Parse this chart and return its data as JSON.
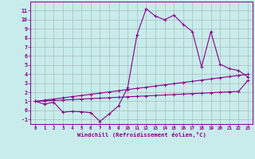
{
  "x": [
    0,
    1,
    2,
    3,
    4,
    5,
    6,
    7,
    8,
    9,
    10,
    11,
    12,
    13,
    14,
    15,
    16,
    17,
    18,
    19,
    20,
    21,
    22,
    23
  ],
  "y_curve": [
    1.0,
    0.7,
    0.9,
    -0.2,
    -0.1,
    -0.15,
    -0.25,
    -1.2,
    -0.4,
    0.5,
    2.5,
    8.3,
    11.2,
    10.4,
    10.0,
    10.5,
    9.5,
    8.7,
    4.8,
    8.7,
    5.1,
    4.6,
    4.4,
    3.7
  ],
  "y_line1": [
    1.0,
    1.13,
    1.26,
    1.39,
    1.52,
    1.65,
    1.78,
    1.91,
    2.04,
    2.17,
    2.3,
    2.43,
    2.56,
    2.69,
    2.82,
    2.95,
    3.08,
    3.21,
    3.34,
    3.47,
    3.6,
    3.73,
    3.86,
    3.99
  ],
  "y_line2": [
    1.0,
    1.05,
    1.1,
    1.15,
    1.2,
    1.25,
    1.3,
    1.35,
    1.4,
    1.45,
    1.5,
    1.55,
    1.6,
    1.65,
    1.7,
    1.75,
    1.8,
    1.85,
    1.9,
    1.95,
    2.0,
    2.05,
    2.1,
    3.3
  ],
  "line_color": "#880088",
  "bg_color": "#c8ecec",
  "grid_color": "#aabbbb",
  "xlim": [
    -0.5,
    23.5
  ],
  "ylim": [
    -1.5,
    12.0
  ],
  "yticks": [
    -1,
    0,
    1,
    2,
    3,
    4,
    5,
    6,
    7,
    8,
    9,
    10,
    11
  ],
  "xticks": [
    0,
    1,
    2,
    3,
    4,
    5,
    6,
    7,
    8,
    9,
    10,
    11,
    12,
    13,
    14,
    15,
    16,
    17,
    18,
    19,
    20,
    21,
    22,
    23
  ],
  "xlabel": "Windchill (Refroidissement éolien,°C)",
  "marker": "+"
}
